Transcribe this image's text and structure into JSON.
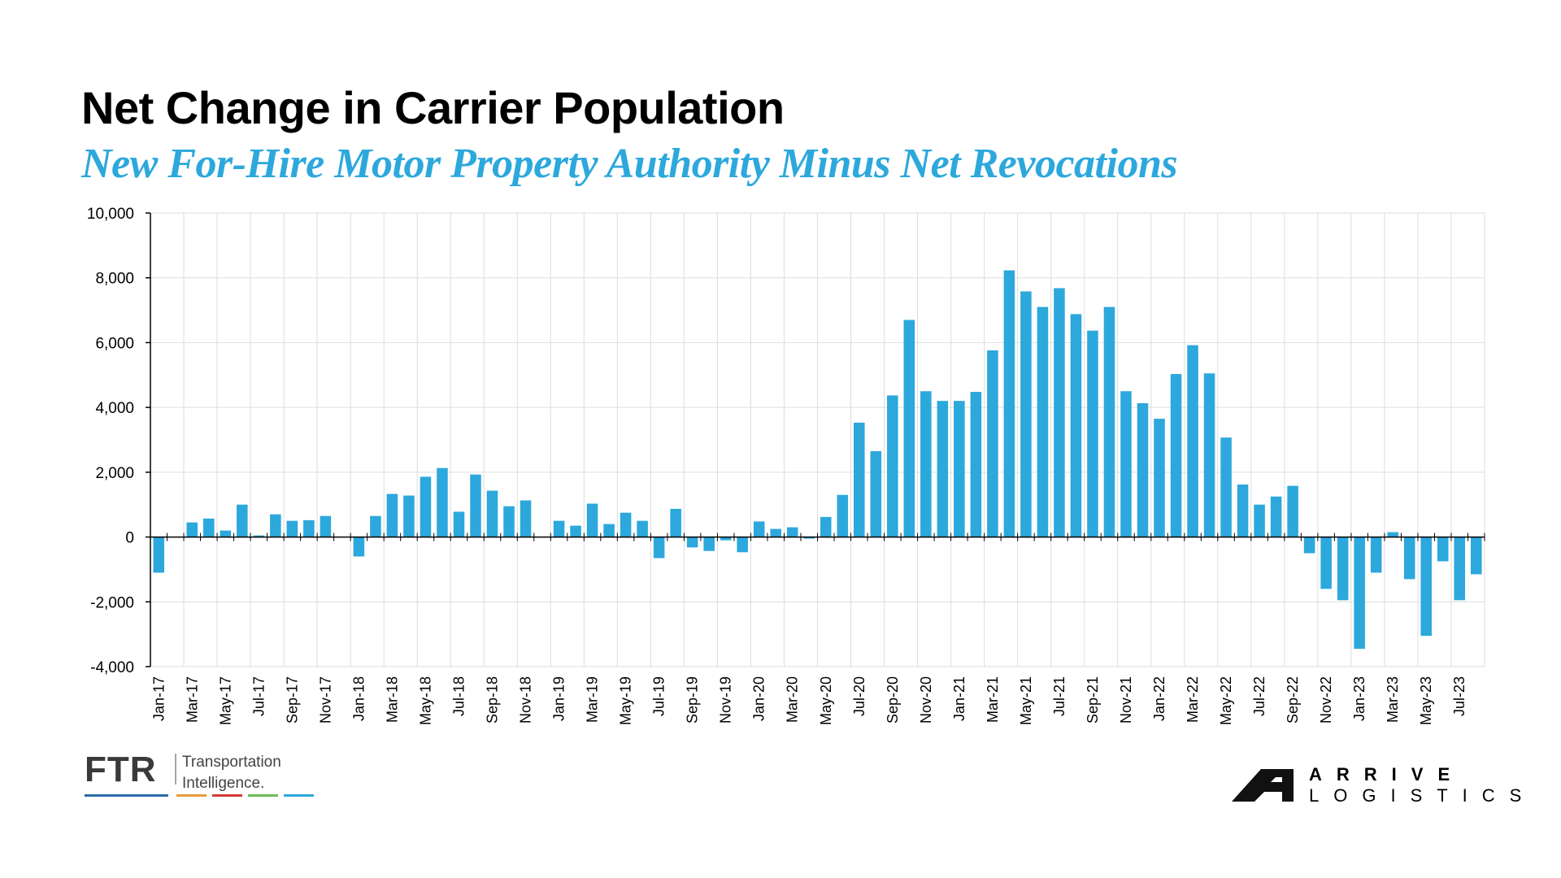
{
  "header": {
    "title": "Net Change in Carrier Population",
    "subtitle": "New For-Hire Motor Property Authority Minus Net Revocations"
  },
  "colors": {
    "bar": "#2ca8dc",
    "subtitle": "#2ca8dc",
    "grid": "#dddddd"
  },
  "logos": {
    "ftr_mark": "FTR",
    "ftr_text": "Transportation\nIntelligence.",
    "arrive_line1": "ARRIVE",
    "arrive_line2": "LOGISTICS"
  },
  "chart_data": {
    "type": "bar",
    "title": "Net Change in Carrier Population",
    "subtitle": "New For-Hire Motor Property Authority Minus Net Revocations",
    "xlabel": "",
    "ylabel": "",
    "ylim": [
      -4000,
      10000
    ],
    "yticks": [
      -4000,
      -2000,
      0,
      2000,
      4000,
      6000,
      8000,
      10000
    ],
    "ytick_labels": [
      "-4,000",
      "-2,000",
      "0",
      "2,000",
      "4,000",
      "6,000",
      "8,000",
      "10,000"
    ],
    "grid": true,
    "categories": [
      "Jan-17",
      "Feb-17",
      "Mar-17",
      "Apr-17",
      "May-17",
      "Jun-17",
      "Jul-17",
      "Aug-17",
      "Sep-17",
      "Oct-17",
      "Nov-17",
      "Dec-17",
      "Jan-18",
      "Feb-18",
      "Mar-18",
      "Apr-18",
      "May-18",
      "Jun-18",
      "Jul-18",
      "Aug-18",
      "Sep-18",
      "Oct-18",
      "Nov-18",
      "Dec-18",
      "Jan-19",
      "Feb-19",
      "Mar-19",
      "Apr-19",
      "May-19",
      "Jun-19",
      "Jul-19",
      "Aug-19",
      "Sep-19",
      "Oct-19",
      "Nov-19",
      "Dec-19",
      "Jan-20",
      "Feb-20",
      "Mar-20",
      "Apr-20",
      "May-20",
      "Jun-20",
      "Jul-20",
      "Aug-20",
      "Sep-20",
      "Oct-20",
      "Nov-20",
      "Dec-20",
      "Jan-21",
      "Feb-21",
      "Mar-21",
      "Apr-21",
      "May-21",
      "Jun-21",
      "Jul-21",
      "Aug-21",
      "Sep-21",
      "Oct-21",
      "Nov-21",
      "Dec-21",
      "Jan-22",
      "Feb-22",
      "Mar-22",
      "Apr-22",
      "May-22",
      "Jun-22",
      "Jul-22",
      "Aug-22",
      "Sep-22",
      "Oct-22",
      "Nov-22",
      "Dec-22",
      "Jan-23",
      "Feb-23",
      "Mar-23",
      "Apr-23",
      "May-23",
      "Jun-23",
      "Jul-23",
      "Aug-23"
    ],
    "tick_labels": [
      "Jan-17",
      "Mar-17",
      "May-17",
      "Jul-17",
      "Sep-17",
      "Nov-17",
      "Jan-18",
      "Mar-18",
      "May-18",
      "Jul-18",
      "Sep-18",
      "Nov-18",
      "Jan-19",
      "Mar-19",
      "May-19",
      "Jul-19",
      "Sep-19",
      "Nov-19",
      "Jan-20",
      "Mar-20",
      "May-20",
      "Jul-20",
      "Sep-20",
      "Nov-20",
      "Jan-21",
      "Mar-21",
      "May-21",
      "Jul-21",
      "Sep-21",
      "Nov-21",
      "Jan-22",
      "Mar-22",
      "May-22",
      "Jul-22",
      "Sep-22",
      "Nov-22",
      "Jan-23",
      "Mar-23",
      "May-23",
      "Jul-23"
    ],
    "values": [
      -1100,
      0,
      450,
      570,
      200,
      1000,
      50,
      700,
      500,
      520,
      650,
      0,
      -600,
      650,
      1330,
      1280,
      1860,
      2130,
      780,
      1930,
      1430,
      950,
      1130,
      0,
      500,
      350,
      1030,
      400,
      750,
      500,
      -650,
      870,
      -320,
      -430,
      -100,
      -470,
      480,
      250,
      300,
      -50,
      620,
      1300,
      3530,
      2650,
      4370,
      6700,
      4500,
      4200,
      4200,
      4480,
      5760,
      8230,
      7580,
      7100,
      7680,
      6880,
      6370,
      7100,
      4500,
      4130,
      3650,
      5030,
      5920,
      5050,
      3070,
      1620,
      1000,
      1250,
      1580,
      -500,
      -1600,
      -1950,
      -3450,
      -1100,
      150,
      -1300,
      -3050,
      -750,
      -1950,
      -1150
    ],
    "series": [
      {
        "name": "",
        "values": "see values"
      }
    ]
  }
}
